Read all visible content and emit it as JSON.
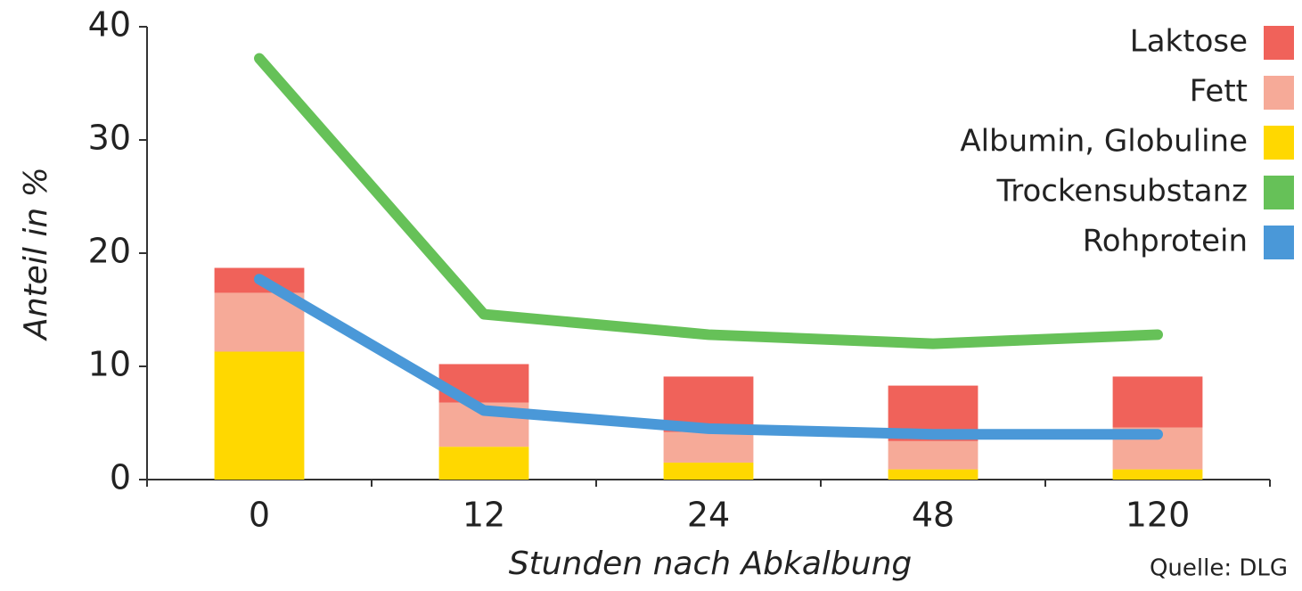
{
  "chart_data": {
    "type": "bar",
    "categories": [
      "0",
      "12",
      "24",
      "48",
      "120"
    ],
    "series": [
      {
        "name": "Laktose",
        "type": "bar",
        "color": "#f0625a",
        "values": [
          2.2,
          3.4,
          4.9,
          4.9,
          4.5
        ]
      },
      {
        "name": "Fett",
        "type": "bar",
        "color": "#f6aa98",
        "values": [
          5.2,
          3.9,
          2.7,
          2.5,
          3.7
        ]
      },
      {
        "name": "Albumin, Globuline",
        "type": "bar",
        "color": "#ffd800",
        "values": [
          11.3,
          2.9,
          1.5,
          0.9,
          0.9
        ]
      },
      {
        "name": "Trockensubstanz",
        "type": "line",
        "color": "#66c158",
        "values": [
          37.2,
          14.6,
          12.8,
          12.0,
          12.8
        ]
      },
      {
        "name": "Rohprotein",
        "type": "line",
        "color": "#4a98d8",
        "values": [
          17.7,
          6.1,
          4.5,
          4.0,
          4.0
        ]
      }
    ],
    "ylabel": "Anteil in %",
    "xlabel": "Stunden nach Abkalbung",
    "source": "Quelle: DLG",
    "ylim": [
      0,
      40
    ],
    "yticks": [
      0,
      10,
      20,
      30,
      40
    ],
    "legend": "top-right"
  }
}
